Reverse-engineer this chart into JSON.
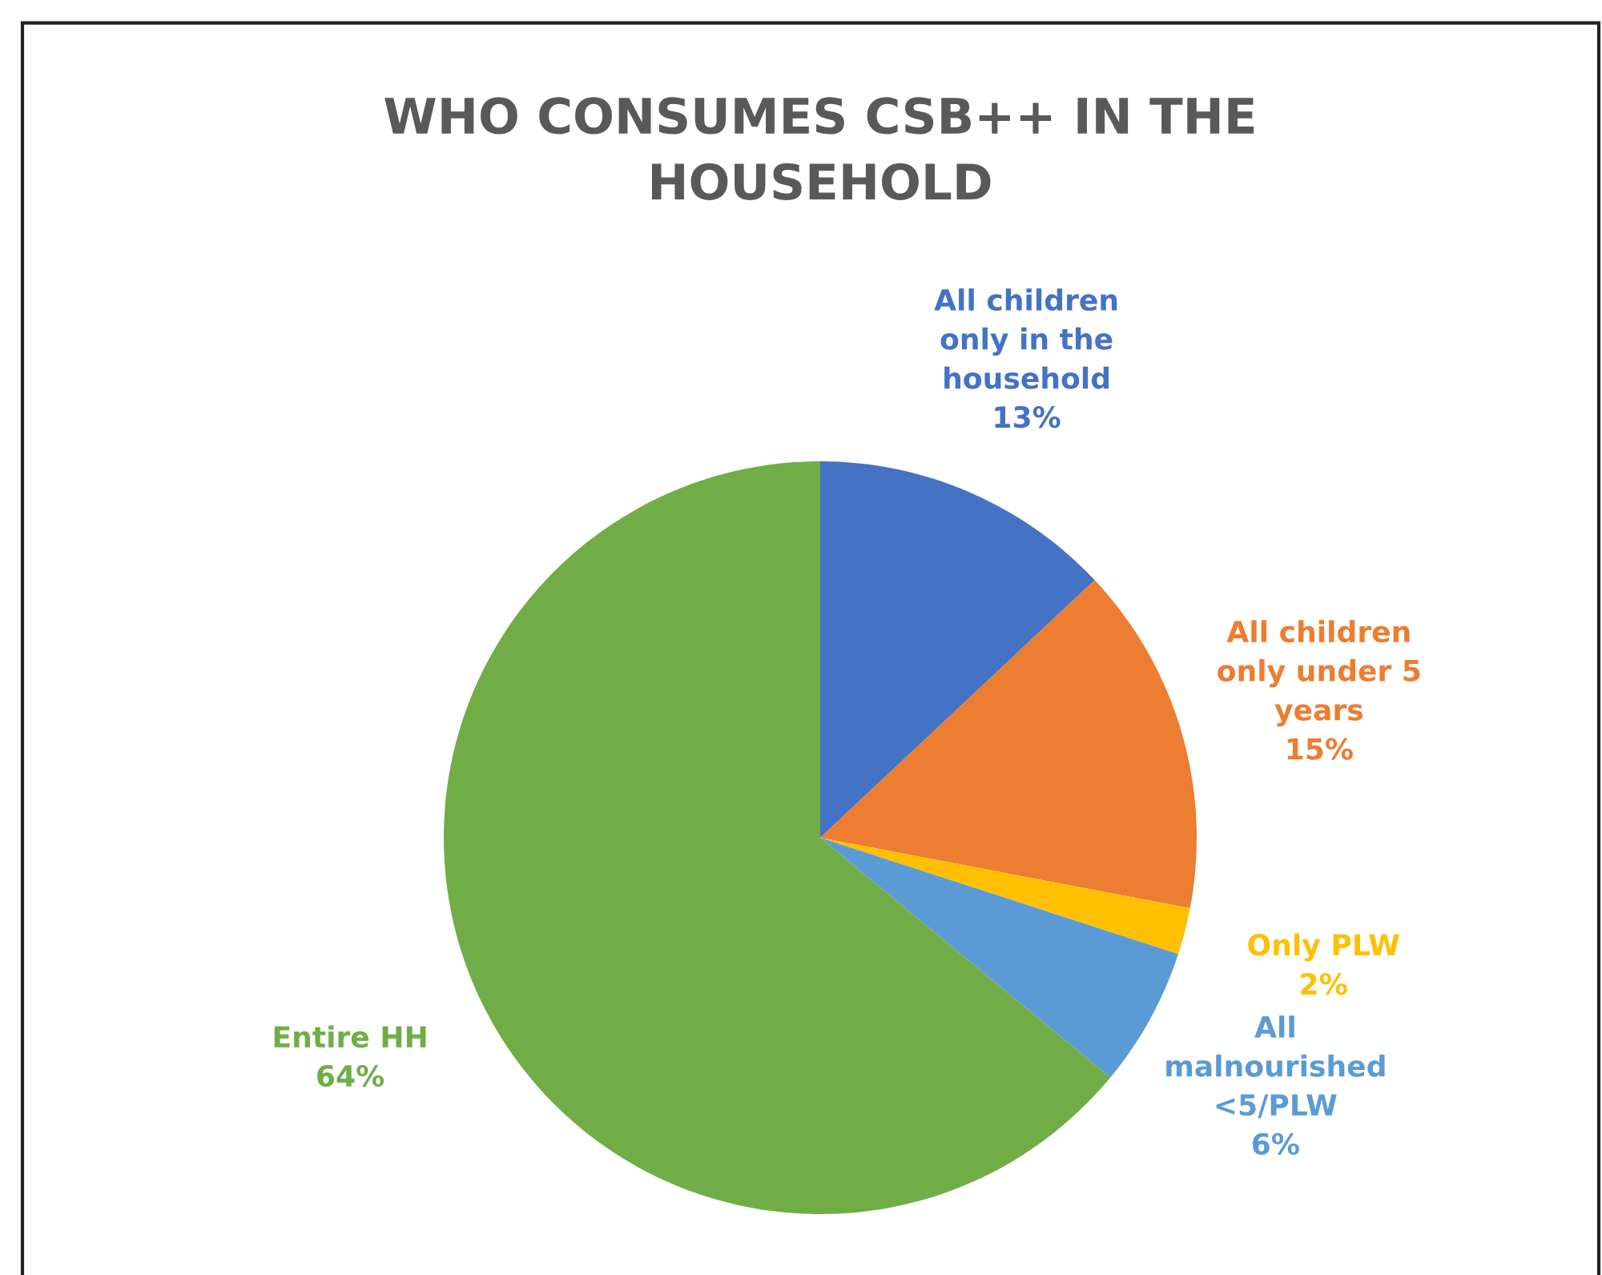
{
  "chart_data": {
    "type": "pie",
    "title": "WHO CONSUMES CSB++ IN THE\nHOUSEHOLD",
    "categories": [
      "All children\nonly in the\nhousehold",
      "All children\nonly under 5\nyears",
      "Only PLW",
      "All\nmalnourished\n<5/PLW",
      "Entire HH"
    ],
    "values": [
      13,
      15,
      2,
      6,
      64
    ],
    "colors": [
      "#4472c4",
      "#ed7d31",
      "#ffc000",
      "#5b9bd5",
      "#70ad47"
    ],
    "value_labels": [
      "13%",
      "15%",
      "2%",
      "6%",
      "64%"
    ],
    "legend": false
  }
}
